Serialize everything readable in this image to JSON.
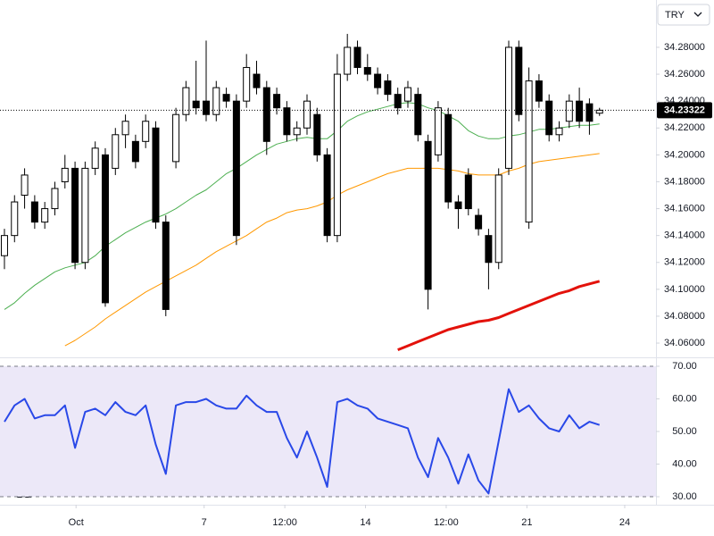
{
  "chart_data": [
    {
      "type": "candlestick",
      "currency": "TRY",
      "last_price": 34.23322,
      "ylim": [
        34.0494,
        34.3152
      ],
      "yticks": [
        {
          "value": 34.06,
          "label": "34.06000"
        },
        {
          "value": 34.08,
          "label": "34.08000"
        },
        {
          "value": 34.1,
          "label": "34.10000"
        },
        {
          "value": 34.12,
          "label": "34.12000"
        },
        {
          "value": 34.14,
          "label": "34.14000"
        },
        {
          "value": 34.16,
          "label": "34.16000"
        },
        {
          "value": 34.18,
          "label": "34.18000"
        },
        {
          "value": 34.2,
          "label": "34.20000"
        },
        {
          "value": 34.22,
          "label": "34.22000"
        },
        {
          "value": 34.24,
          "label": "34.24000"
        },
        {
          "value": 34.26,
          "label": "34.26000"
        },
        {
          "value": 34.28,
          "label": "34.28000"
        }
      ],
      "xlim": [
        -0.44,
        64.6
      ],
      "up_color": "#ffffff",
      "down_color": "#000000",
      "candles": [
        {
          "o": 34.125,
          "h": 34.145,
          "l": 34.115,
          "c": 34.14
        },
        {
          "o": 34.14,
          "h": 34.17,
          "l": 34.135,
          "c": 34.165
        },
        {
          "o": 34.17,
          "h": 34.19,
          "l": 34.16,
          "c": 34.185
        },
        {
          "o": 34.165,
          "h": 34.17,
          "l": 34.145,
          "c": 34.15
        },
        {
          "o": 34.15,
          "h": 34.165,
          "l": 34.145,
          "c": 34.16
        },
        {
          "o": 34.16,
          "h": 34.18,
          "l": 34.155,
          "c": 34.175
        },
        {
          "o": 34.18,
          "h": 34.2,
          "l": 34.175,
          "c": 34.19
        },
        {
          "o": 34.19,
          "h": 34.195,
          "l": 34.115,
          "c": 34.12
        },
        {
          "o": 34.12,
          "h": 34.195,
          "l": 34.115,
          "c": 34.19
        },
        {
          "o": 34.19,
          "h": 34.21,
          "l": 34.185,
          "c": 34.205
        },
        {
          "o": 34.2,
          "h": 34.205,
          "l": 34.087,
          "c": 34.09
        },
        {
          "o": 34.19,
          "h": 34.22,
          "l": 34.185,
          "c": 34.215
        },
        {
          "o": 34.215,
          "h": 34.23,
          "l": 34.205,
          "c": 34.225
        },
        {
          "o": 34.21,
          "h": 34.215,
          "l": 34.19,
          "c": 34.195
        },
        {
          "o": 34.21,
          "h": 34.23,
          "l": 34.205,
          "c": 34.225
        },
        {
          "o": 34.22,
          "h": 34.225,
          "l": 34.145,
          "c": 34.15
        },
        {
          "o": 34.15,
          "h": 34.155,
          "l": 34.08,
          "c": 34.085
        },
        {
          "o": 34.195,
          "h": 34.235,
          "l": 34.19,
          "c": 34.23
        },
        {
          "o": 34.23,
          "h": 34.255,
          "l": 34.225,
          "c": 34.25
        },
        {
          "o": 34.24,
          "h": 34.27,
          "l": 34.23,
          "c": 34.235
        },
        {
          "o": 34.24,
          "h": 34.285,
          "l": 34.225,
          "c": 34.23
        },
        {
          "o": 34.23,
          "h": 34.255,
          "l": 34.225,
          "c": 34.25
        },
        {
          "o": 34.245,
          "h": 34.25,
          "l": 34.235,
          "c": 34.24
        },
        {
          "o": 34.24,
          "h": 34.245,
          "l": 34.133,
          "c": 34.14
        },
        {
          "o": 34.24,
          "h": 34.275,
          "l": 34.235,
          "c": 34.265
        },
        {
          "o": 34.26,
          "h": 34.27,
          "l": 34.245,
          "c": 34.25
        },
        {
          "o": 34.25,
          "h": 34.255,
          "l": 34.2,
          "c": 34.21
        },
        {
          "o": 34.245,
          "h": 34.25,
          "l": 34.23,
          "c": 34.235
        },
        {
          "o": 34.235,
          "h": 34.24,
          "l": 34.21,
          "c": 34.215
        },
        {
          "o": 34.215,
          "h": 34.225,
          "l": 34.21,
          "c": 34.22
        },
        {
          "o": 34.22,
          "h": 34.245,
          "l": 34.215,
          "c": 34.24
        },
        {
          "o": 34.23,
          "h": 34.235,
          "l": 34.195,
          "c": 34.2
        },
        {
          "o": 34.2,
          "h": 34.205,
          "l": 34.135,
          "c": 34.14
        },
        {
          "o": 34.14,
          "h": 34.275,
          "l": 34.135,
          "c": 34.26
        },
        {
          "o": 34.26,
          "h": 34.29,
          "l": 34.255,
          "c": 34.28
        },
        {
          "o": 34.28,
          "h": 34.285,
          "l": 34.26,
          "c": 34.265
        },
        {
          "o": 34.265,
          "h": 34.275,
          "l": 34.255,
          "c": 34.26
        },
        {
          "o": 34.26,
          "h": 34.265,
          "l": 34.245,
          "c": 34.25
        },
        {
          "o": 34.255,
          "h": 34.26,
          "l": 34.24,
          "c": 34.245
        },
        {
          "o": 34.245,
          "h": 34.25,
          "l": 34.23,
          "c": 34.235
        },
        {
          "o": 34.24,
          "h": 34.255,
          "l": 34.235,
          "c": 34.25
        },
        {
          "o": 34.245,
          "h": 34.25,
          "l": 34.21,
          "c": 34.215
        },
        {
          "o": 34.21,
          "h": 34.215,
          "l": 34.085,
          "c": 34.1
        },
        {
          "o": 34.2,
          "h": 34.24,
          "l": 34.195,
          "c": 34.235
        },
        {
          "o": 34.23,
          "h": 34.235,
          "l": 34.16,
          "c": 34.165
        },
        {
          "o": 34.165,
          "h": 34.17,
          "l": 34.145,
          "c": 34.16
        },
        {
          "o": 34.185,
          "h": 34.19,
          "l": 34.155,
          "c": 34.16
        },
        {
          "o": 34.155,
          "h": 34.16,
          "l": 34.14,
          "c": 34.145
        },
        {
          "o": 34.14,
          "h": 34.145,
          "l": 34.1,
          "c": 34.12
        },
        {
          "o": 34.12,
          "h": 34.19,
          "l": 34.115,
          "c": 34.185
        },
        {
          "o": 34.19,
          "h": 34.285,
          "l": 34.185,
          "c": 34.28
        },
        {
          "o": 34.28,
          "h": 34.285,
          "l": 34.225,
          "c": 34.23
        },
        {
          "o": 34.15,
          "h": 34.265,
          "l": 34.145,
          "c": 34.255
        },
        {
          "o": 34.255,
          "h": 34.26,
          "l": 34.235,
          "c": 34.24
        },
        {
          "o": 34.24,
          "h": 34.245,
          "l": 34.21,
          "c": 34.215
        },
        {
          "o": 34.215,
          "h": 34.225,
          "l": 34.21,
          "c": 34.22
        },
        {
          "o": 34.225,
          "h": 34.245,
          "l": 34.22,
          "c": 34.24
        },
        {
          "o": 34.24,
          "h": 34.25,
          "l": 34.22,
          "c": 34.225
        },
        {
          "o": 34.238,
          "h": 34.242,
          "l": 34.215,
          "c": 34.225
        },
        {
          "o": 34.231,
          "h": 34.235,
          "l": 34.229,
          "c": 34.23322
        }
      ],
      "lines": [
        {
          "color": "#4caf50",
          "width": 1,
          "values": [
            34.085,
            34.09,
            34.097,
            34.103,
            34.108,
            34.113,
            34.116,
            34.118,
            34.12,
            34.125,
            34.132,
            34.137,
            34.142,
            34.146,
            34.15,
            34.153,
            34.156,
            34.16,
            34.165,
            34.17,
            34.174,
            34.18,
            34.186,
            34.19,
            34.195,
            34.2,
            34.204,
            34.208,
            34.21,
            34.212,
            34.213,
            34.212,
            34.212,
            34.218,
            34.225,
            34.229,
            34.232,
            34.234,
            34.236,
            34.238,
            34.239,
            34.238,
            34.235,
            34.233,
            34.229,
            34.225,
            34.218,
            34.214,
            34.212,
            34.212,
            34.214,
            34.215,
            34.217,
            34.219,
            34.219,
            34.22,
            34.221,
            34.222,
            34.222,
            34.223
          ]
        },
        {
          "color": "#ff9800",
          "width": 1,
          "values": [
            null,
            null,
            null,
            null,
            null,
            null,
            34.058,
            34.062,
            34.067,
            34.072,
            34.078,
            34.083,
            34.088,
            34.093,
            34.098,
            34.102,
            34.106,
            34.11,
            34.114,
            34.118,
            34.123,
            34.128,
            34.132,
            34.136,
            34.14,
            34.145,
            34.15,
            34.153,
            34.157,
            34.159,
            34.16,
            34.162,
            34.165,
            34.17,
            34.174,
            34.177,
            34.18,
            34.183,
            34.186,
            34.188,
            34.19,
            34.19,
            34.19,
            34.19,
            34.189,
            34.188,
            34.186,
            34.185,
            34.185,
            34.185,
            34.188,
            34.19,
            34.193,
            34.195,
            34.196,
            34.197,
            34.198,
            34.199,
            34.2,
            34.201
          ]
        },
        {
          "color": "#e3120b",
          "width": 3,
          "values": [
            null,
            null,
            null,
            null,
            null,
            null,
            null,
            null,
            null,
            null,
            null,
            null,
            null,
            null,
            null,
            null,
            null,
            null,
            null,
            null,
            null,
            null,
            null,
            null,
            null,
            null,
            null,
            null,
            null,
            null,
            null,
            null,
            null,
            null,
            null,
            null,
            null,
            null,
            null,
            34.055,
            34.058,
            34.061,
            34.064,
            34.067,
            34.07,
            34.072,
            34.074,
            34.076,
            34.077,
            34.079,
            34.082,
            34.085,
            34.088,
            34.091,
            34.094,
            34.097,
            34.099,
            34.102,
            34.104,
            34.106
          ]
        }
      ]
    },
    {
      "type": "line",
      "ylim": [
        30,
        70
      ],
      "yticks": [
        {
          "value": 30,
          "label": "30.00"
        },
        {
          "value": 40,
          "label": "40.00"
        },
        {
          "value": 50,
          "label": "50.00"
        },
        {
          "value": 60,
          "label": "60.00"
        },
        {
          "value": 70,
          "label": "70.00"
        }
      ],
      "xlim": [
        -0.44,
        64.6
      ],
      "xticks": [
        {
          "value": 7.1,
          "label": "Oct"
        },
        {
          "value": 19.8,
          "label": "7"
        },
        {
          "value": 27.8,
          "label": "12:00"
        },
        {
          "value": 35.8,
          "label": "14"
        },
        {
          "value": 43.8,
          "label": "12:00"
        },
        {
          "value": 51.8,
          "label": "21"
        },
        {
          "value": 61.5,
          "label": "24"
        }
      ],
      "color": "#2948e8",
      "band_color": "#ece8f8",
      "values": [
        53,
        58,
        60,
        54,
        55,
        55,
        58,
        45,
        56,
        57,
        55,
        59,
        56,
        55,
        58,
        46,
        37,
        58,
        59,
        59,
        60,
        58,
        57,
        57,
        61,
        58,
        56,
        56,
        48,
        42,
        50,
        42,
        33,
        59,
        60,
        58,
        57,
        54,
        53,
        52,
        51,
        42,
        36,
        48,
        42,
        34,
        43,
        35,
        31,
        47,
        63,
        56,
        58,
        54,
        51,
        50,
        55,
        51,
        53,
        52
      ]
    }
  ]
}
